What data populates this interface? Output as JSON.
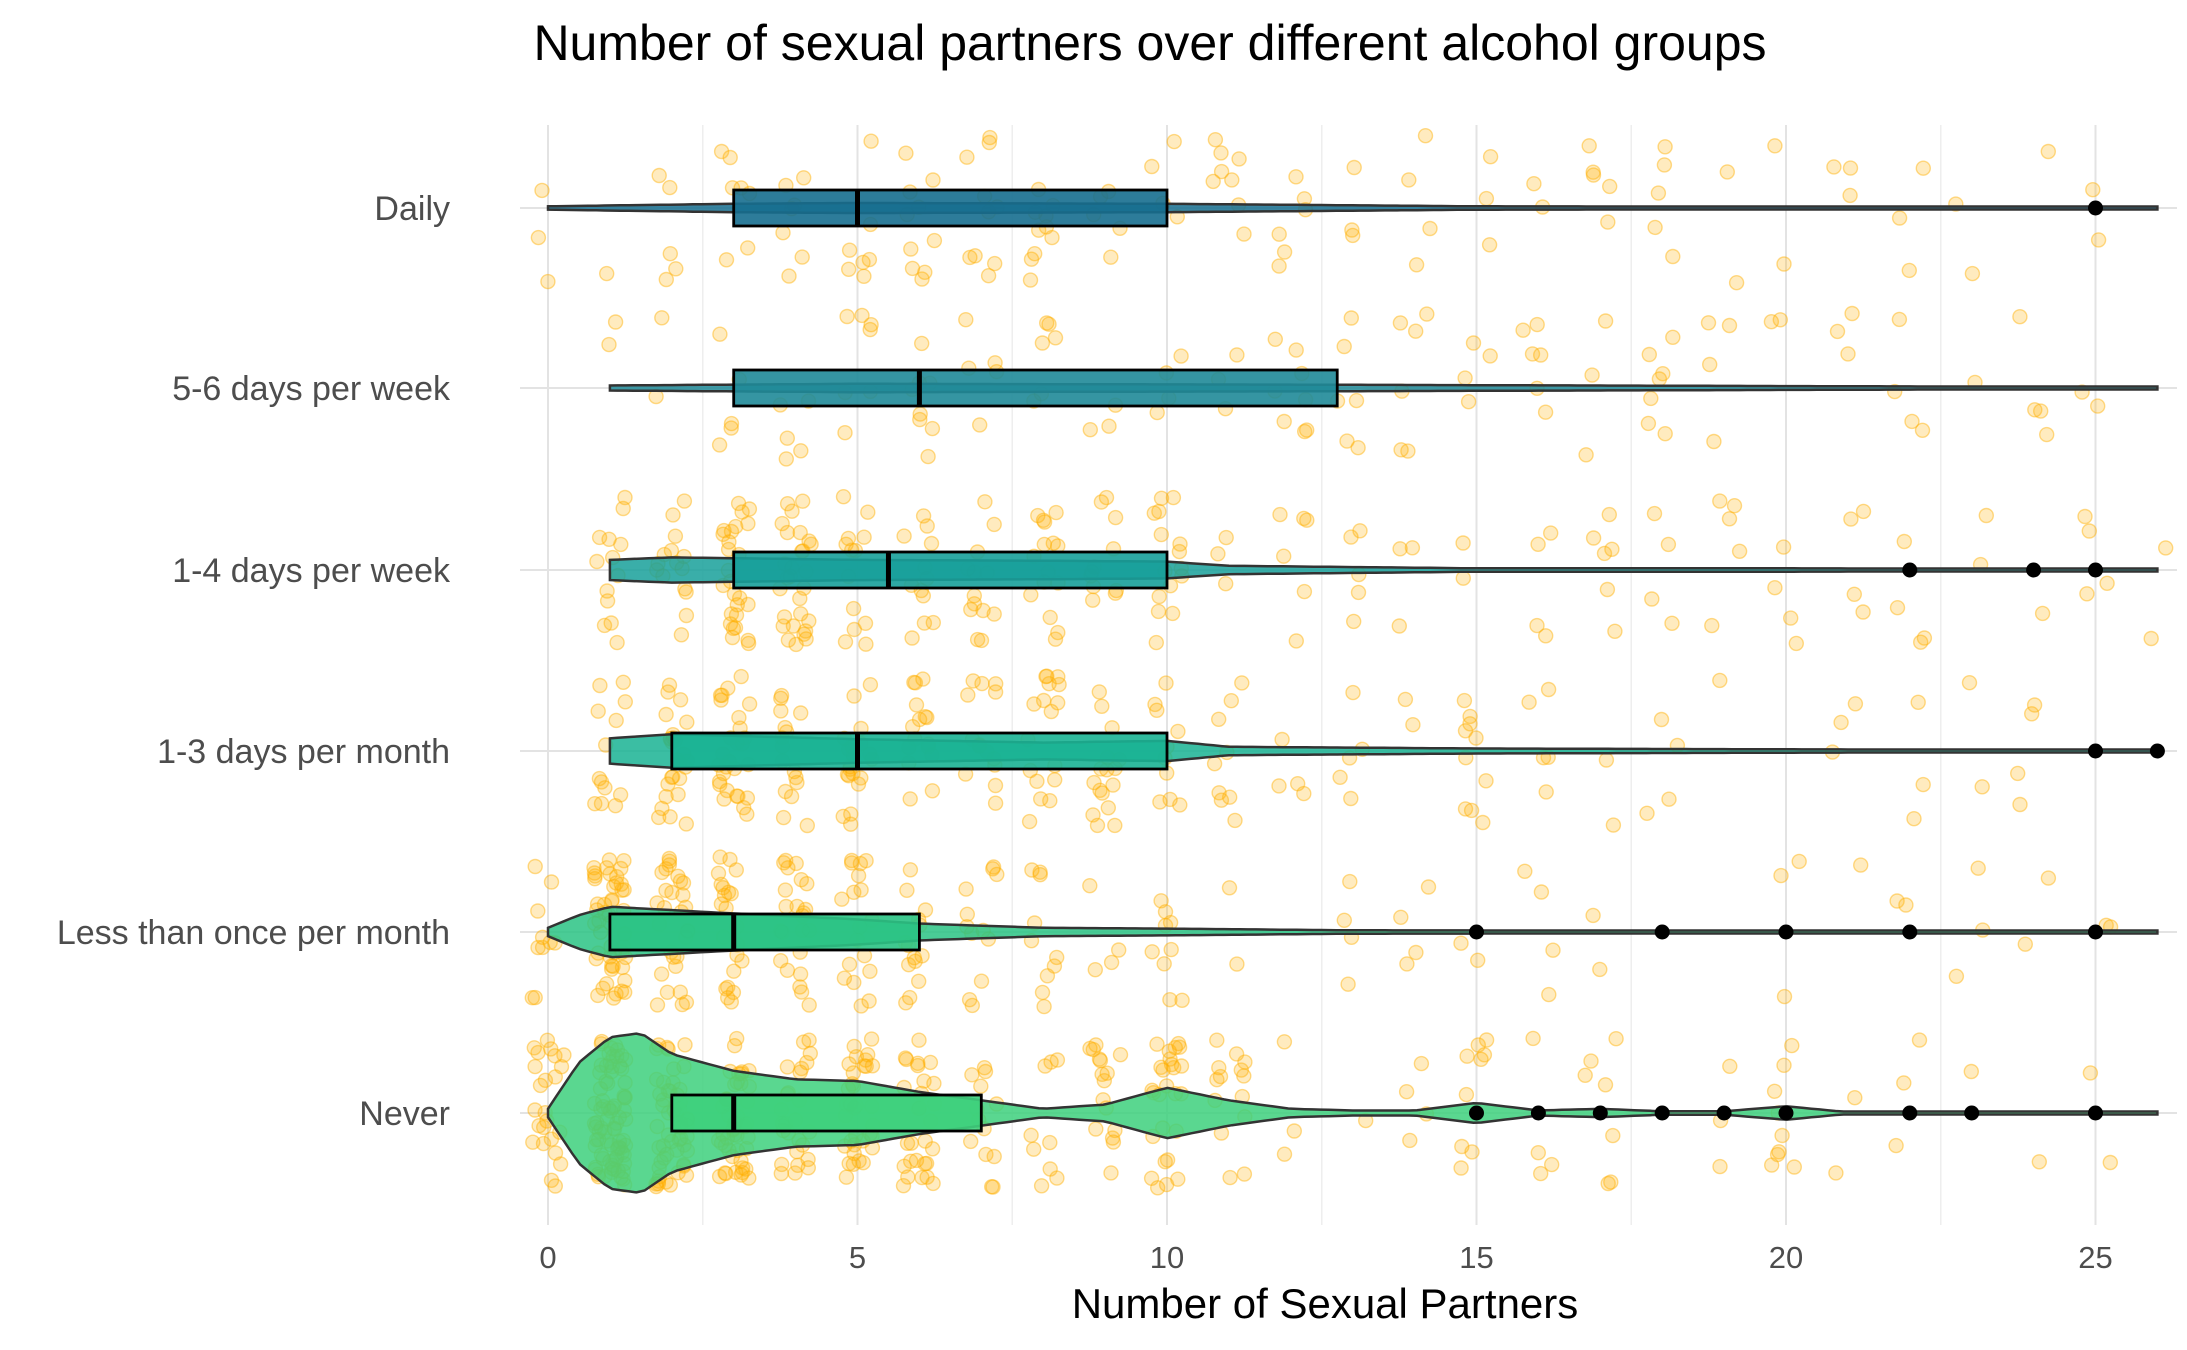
{
  "chart_data": {
    "type": "violin-box-jitter",
    "title": "Number of sexual partners over different alcohol groups",
    "xlabel": "Number of Sexual Partners",
    "ylabel": "",
    "xlim": [
      -1,
      26.5
    ],
    "xticks": [
      0,
      5,
      10,
      15,
      20,
      25
    ],
    "grid": true,
    "legend": "none",
    "categories": [
      "Daily",
      "5-6 days per week",
      "1-4 days per week",
      "1-3 days per month",
      "Less than once per month",
      "Never"
    ],
    "colors": {
      "jitter": "#ffb000",
      "outlier": "#000000",
      "box_outline": "#000000",
      "groups": [
        "#166e8f",
        "#1f8a98",
        "#17a09a",
        "#19b393",
        "#2ac384",
        "#3dd07c"
      ]
    },
    "series": [
      {
        "name": "Daily",
        "box": {
          "q1": 3,
          "median": 5,
          "q3": 10
        },
        "range": [
          0,
          26
        ],
        "outliers": [
          25
        ],
        "density": [
          [
            0,
            0.02
          ],
          [
            3,
            0.05
          ],
          [
            5,
            0.06
          ],
          [
            10,
            0.05
          ],
          [
            15,
            0.02
          ],
          [
            26,
            0.01
          ]
        ],
        "n_points": 120
      },
      {
        "name": "5-6 days per week",
        "box": {
          "q1": 3,
          "median": 6,
          "q3": 12.75
        },
        "range": [
          1,
          26
        ],
        "outliers": [],
        "density": [
          [
            1,
            0.03
          ],
          [
            5,
            0.05
          ],
          [
            12,
            0.04
          ],
          [
            26,
            0.01
          ]
        ],
        "n_points": 110
      },
      {
        "name": "1-4 days per week",
        "box": {
          "q1": 3,
          "median": 5.5,
          "q3": 10
        },
        "range": [
          1,
          26
        ],
        "outliers": [
          22,
          24,
          25
        ],
        "density": [
          [
            1,
            0.12
          ],
          [
            2,
            0.15
          ],
          [
            3,
            0.14
          ],
          [
            5,
            0.12
          ],
          [
            8,
            0.11
          ],
          [
            10,
            0.1
          ],
          [
            11,
            0.05
          ],
          [
            15,
            0.02
          ],
          [
            20,
            0.02
          ],
          [
            26,
            0.01
          ]
        ],
        "n_points": 220
      },
      {
        "name": "1-3 days per month",
        "box": {
          "q1": 2,
          "median": 5,
          "q3": 10
        },
        "range": [
          1,
          26
        ],
        "outliers": [
          25,
          26
        ],
        "density": [
          [
            1,
            0.15
          ],
          [
            2,
            0.2
          ],
          [
            3,
            0.18
          ],
          [
            5,
            0.14
          ],
          [
            8,
            0.1
          ],
          [
            10,
            0.12
          ],
          [
            11,
            0.05
          ],
          [
            15,
            0.03
          ],
          [
            20,
            0.02
          ],
          [
            26,
            0.01
          ]
        ],
        "n_points": 230
      },
      {
        "name": "Less than once per month",
        "box": {
          "q1": 1,
          "median": 3,
          "q3": 6
        },
        "range": [
          0,
          26
        ],
        "outliers": [
          15,
          18,
          20,
          22,
          25
        ],
        "density": [
          [
            0,
            0.05
          ],
          [
            0.5,
            0.2
          ],
          [
            1,
            0.3
          ],
          [
            2,
            0.26
          ],
          [
            3,
            0.22
          ],
          [
            5,
            0.15
          ],
          [
            6,
            0.1
          ],
          [
            8,
            0.05
          ],
          [
            10,
            0.04
          ],
          [
            13,
            0.02
          ],
          [
            26,
            0.01
          ]
        ],
        "n_points": 230
      },
      {
        "name": "Never",
        "box": {
          "q1": 2,
          "median": 3,
          "q3": 7
        },
        "range": [
          0,
          26
        ],
        "outliers": [
          15,
          16,
          17,
          18,
          19,
          20,
          22,
          23,
          25
        ],
        "density": [
          [
            0,
            0.05
          ],
          [
            0.5,
            0.6
          ],
          [
            1,
            0.9
          ],
          [
            1.5,
            0.95
          ],
          [
            2,
            0.7
          ],
          [
            3,
            0.5
          ],
          [
            4,
            0.4
          ],
          [
            5,
            0.38
          ],
          [
            6,
            0.25
          ],
          [
            7,
            0.15
          ],
          [
            8,
            0.05
          ],
          [
            9,
            0.1
          ],
          [
            10,
            0.3
          ],
          [
            11,
            0.15
          ],
          [
            12,
            0.05
          ],
          [
            13,
            0.03
          ],
          [
            14,
            0.03
          ],
          [
            15,
            0.12
          ],
          [
            16,
            0.03
          ],
          [
            17,
            0.05
          ],
          [
            18,
            0.02
          ],
          [
            19,
            0.02
          ],
          [
            20,
            0.08
          ],
          [
            21,
            0.01
          ],
          [
            26,
            0.01
          ]
        ],
        "n_points": 420
      }
    ]
  }
}
